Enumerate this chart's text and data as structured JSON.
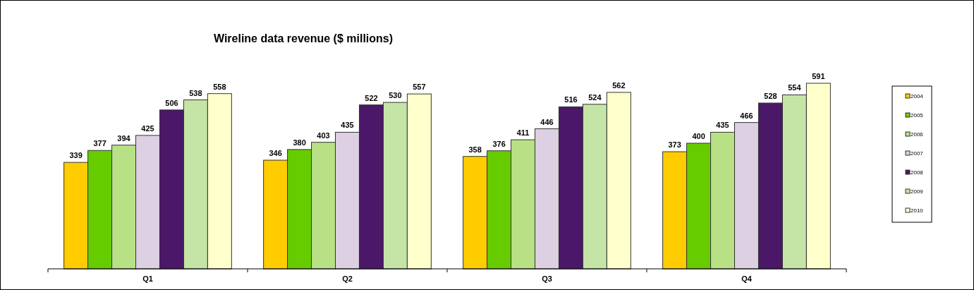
{
  "chart_data": {
    "type": "bar",
    "title": "Wireline data revenue ($ millions)",
    "categories": [
      "Q1",
      "Q2",
      "Q3",
      "Q4"
    ],
    "series": [
      {
        "name": "2004",
        "color": "#ffcc00",
        "values": [
          339,
          346,
          358,
          373
        ]
      },
      {
        "name": "2005",
        "color": "#66cc00",
        "values": [
          377,
          380,
          376,
          400
        ]
      },
      {
        "name": "2006",
        "color": "#b8e186",
        "values": [
          394,
          403,
          411,
          435
        ]
      },
      {
        "name": "2007",
        "color": "#dcd0e2",
        "values": [
          425,
          435,
          446,
          466
        ]
      },
      {
        "name": "2008",
        "color": "#4b1768",
        "values": [
          506,
          522,
          516,
          528
        ]
      },
      {
        "name": "2009",
        "color": "#c4e5a6",
        "values": [
          538,
          530,
          524,
          554
        ]
      },
      {
        "name": "2010",
        "color": "#ffffcc",
        "values": [
          558,
          557,
          562,
          591
        ]
      }
    ],
    "data_labels": true,
    "legend": "right"
  }
}
